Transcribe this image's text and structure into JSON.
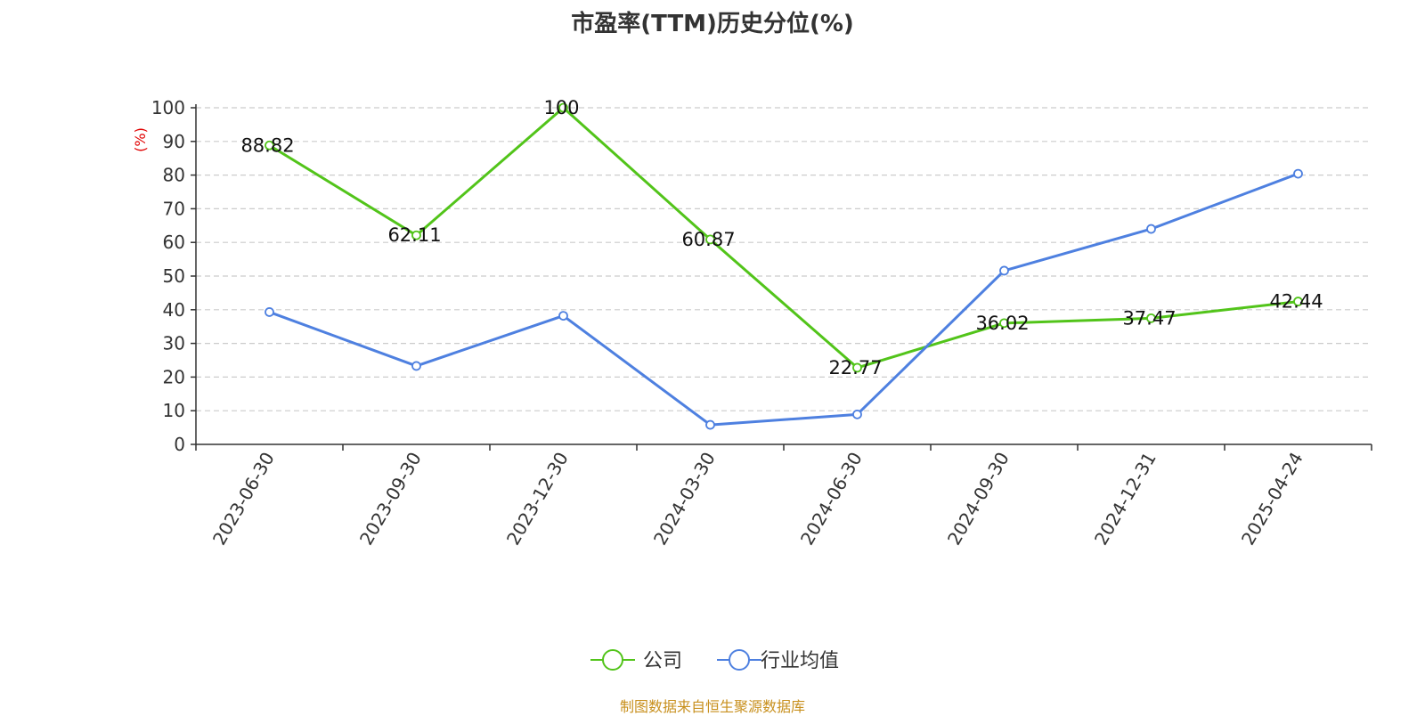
{
  "chart_data": {
    "type": "line",
    "title": "市盈率(TTM)历史分位(%)",
    "ylabel": "(%)",
    "ylim": [
      0,
      100
    ],
    "yticks": [
      0,
      10,
      20,
      30,
      40,
      50,
      60,
      70,
      80,
      90,
      100
    ],
    "categories": [
      "2023-06-30",
      "2023-09-30",
      "2023-12-30",
      "2024-03-30",
      "2024-06-30",
      "2024-09-30",
      "2024-12-31",
      "2025-04-24"
    ],
    "series": [
      {
        "name": "公司",
        "color": "#52c41a",
        "values": [
          88.82,
          62.11,
          100,
          60.87,
          22.77,
          36.02,
          37.47,
          42.44
        ],
        "labels": [
          "88.82",
          "62.11",
          "100",
          "60.87",
          "22.77",
          "36.02",
          "37.47",
          "42.44"
        ]
      },
      {
        "name": "行业均值",
        "color": "#4e80e0",
        "values": [
          39.3,
          23.3,
          38.2,
          5.8,
          8.9,
          51.6,
          64.0,
          80.4
        ]
      }
    ],
    "grid": true,
    "legend": "bottom-center"
  },
  "source": "制图数据来自恒生聚源数据库"
}
